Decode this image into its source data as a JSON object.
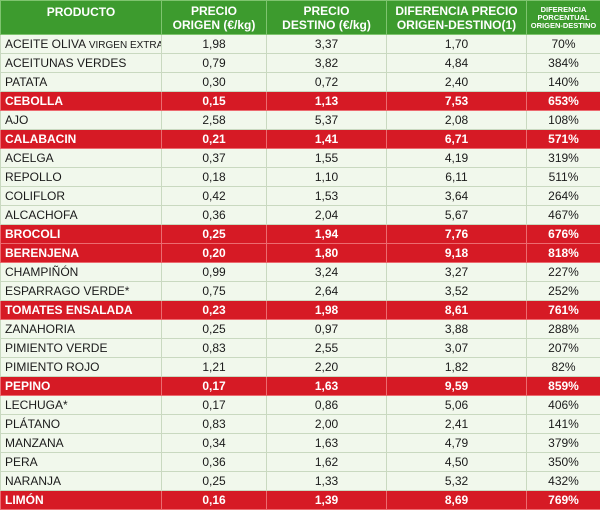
{
  "headers": {
    "product": "PRODUCTO",
    "origin_line1": "PRECIO",
    "origin_line2": "ORIGEN (€/kg)",
    "dest_line1": "PRECIO",
    "dest_line2": "DESTINO (€/kg)",
    "diff_line1": "DIFERENCIA PRECIO",
    "diff_line2": "ORIGEN-DESTINO(1)",
    "pct_line1": "DIFERENCIA",
    "pct_line2": "PORCENTUAL",
    "pct_line3": "ORIGEN-DESTINO"
  },
  "colors": {
    "header_bg": "#3d9b2e",
    "row_bg": "#f1f8ec",
    "highlight_bg": "#d61a25"
  },
  "rows": [
    {
      "product": "ACEITE OLIVA",
      "note": "VIRGEN EXTRA*",
      "origin": "1,98",
      "dest": "3,37",
      "diff": "1,70",
      "pct": "70%",
      "highlight": false
    },
    {
      "product": "ACEITUNAS VERDES",
      "note": "",
      "origin": "0,79",
      "dest": "3,82",
      "diff": "4,84",
      "pct": "384%",
      "highlight": false
    },
    {
      "product": "PATATA",
      "note": "",
      "origin": "0,30",
      "dest": "0,72",
      "diff": "2,40",
      "pct": "140%",
      "highlight": false
    },
    {
      "product": "CEBOLLA",
      "note": "",
      "origin": "0,15",
      "dest": "1,13",
      "diff": "7,53",
      "pct": "653%",
      "highlight": true
    },
    {
      "product": "AJO",
      "note": "",
      "origin": "2,58",
      "dest": "5,37",
      "diff": "2,08",
      "pct": "108%",
      "highlight": false
    },
    {
      "product": "CALABACIN",
      "note": "",
      "origin": "0,21",
      "dest": "1,41",
      "diff": "6,71",
      "pct": "571%",
      "highlight": true
    },
    {
      "product": "ACELGA",
      "note": "",
      "origin": "0,37",
      "dest": "1,55",
      "diff": "4,19",
      "pct": "319%",
      "highlight": false
    },
    {
      "product": "REPOLLO",
      "note": "",
      "origin": "0,18",
      "dest": "1,10",
      "diff": "6,11",
      "pct": "511%",
      "highlight": false
    },
    {
      "product": "COLIFLOR",
      "note": "",
      "origin": "0,42",
      "dest": "1,53",
      "diff": "3,64",
      "pct": "264%",
      "highlight": false
    },
    {
      "product": "ALCACHOFA",
      "note": "",
      "origin": "0,36",
      "dest": "2,04",
      "diff": "5,67",
      "pct": "467%",
      "highlight": false
    },
    {
      "product": "BROCOLI",
      "note": "",
      "origin": "0,25",
      "dest": "1,94",
      "diff": "7,76",
      "pct": "676%",
      "highlight": true
    },
    {
      "product": "BERENJENA",
      "note": "",
      "origin": "0,20",
      "dest": "1,80",
      "diff": "9,18",
      "pct": "818%",
      "highlight": true
    },
    {
      "product": "CHAMPIÑÓN",
      "note": "",
      "origin": "0,99",
      "dest": "3,24",
      "diff": "3,27",
      "pct": "227%",
      "highlight": false
    },
    {
      "product": "ESPARRAGO VERDE*",
      "note": "",
      "origin": "0,75",
      "dest": "2,64",
      "diff": "3,52",
      "pct": "252%",
      "highlight": false
    },
    {
      "product": "TOMATES ENSALADA",
      "note": "",
      "origin": "0,23",
      "dest": "1,98",
      "diff": "8,61",
      "pct": "761%",
      "highlight": true
    },
    {
      "product": "ZANAHORIA",
      "note": "",
      "origin": "0,25",
      "dest": "0,97",
      "diff": "3,88",
      "pct": "288%",
      "highlight": false
    },
    {
      "product": "PIMIENTO VERDE",
      "note": "",
      "origin": "0,83",
      "dest": "2,55",
      "diff": "3,07",
      "pct": "207%",
      "highlight": false
    },
    {
      "product": "PIMIENTO ROJO",
      "note": "",
      "origin": "1,21",
      "dest": "2,20",
      "diff": "1,82",
      "pct": "82%",
      "highlight": false
    },
    {
      "product": "PEPINO",
      "note": "",
      "origin": "0,17",
      "dest": "1,63",
      "diff": "9,59",
      "pct": "859%",
      "highlight": true
    },
    {
      "product": "LECHUGA*",
      "note": "",
      "origin": "0,17",
      "dest": "0,86",
      "diff": "5,06",
      "pct": "406%",
      "highlight": false
    },
    {
      "product": "PLÁTANO",
      "note": "",
      "origin": "0,83",
      "dest": "2,00",
      "diff": "2,41",
      "pct": "141%",
      "highlight": false
    },
    {
      "product": "MANZANA",
      "note": "",
      "origin": "0,34",
      "dest": "1,63",
      "diff": "4,79",
      "pct": "379%",
      "highlight": false
    },
    {
      "product": "PERA",
      "note": "",
      "origin": "0,36",
      "dest": "1,62",
      "diff": "4,50",
      "pct": "350%",
      "highlight": false
    },
    {
      "product": "NARANJA",
      "note": "",
      "origin": "0,25",
      "dest": "1,33",
      "diff": "5,32",
      "pct": "432%",
      "highlight": false
    },
    {
      "product": "LIMÓN",
      "note": "",
      "origin": "0,16",
      "dest": "1,39",
      "diff": "8,69",
      "pct": "769%",
      "highlight": true
    }
  ]
}
